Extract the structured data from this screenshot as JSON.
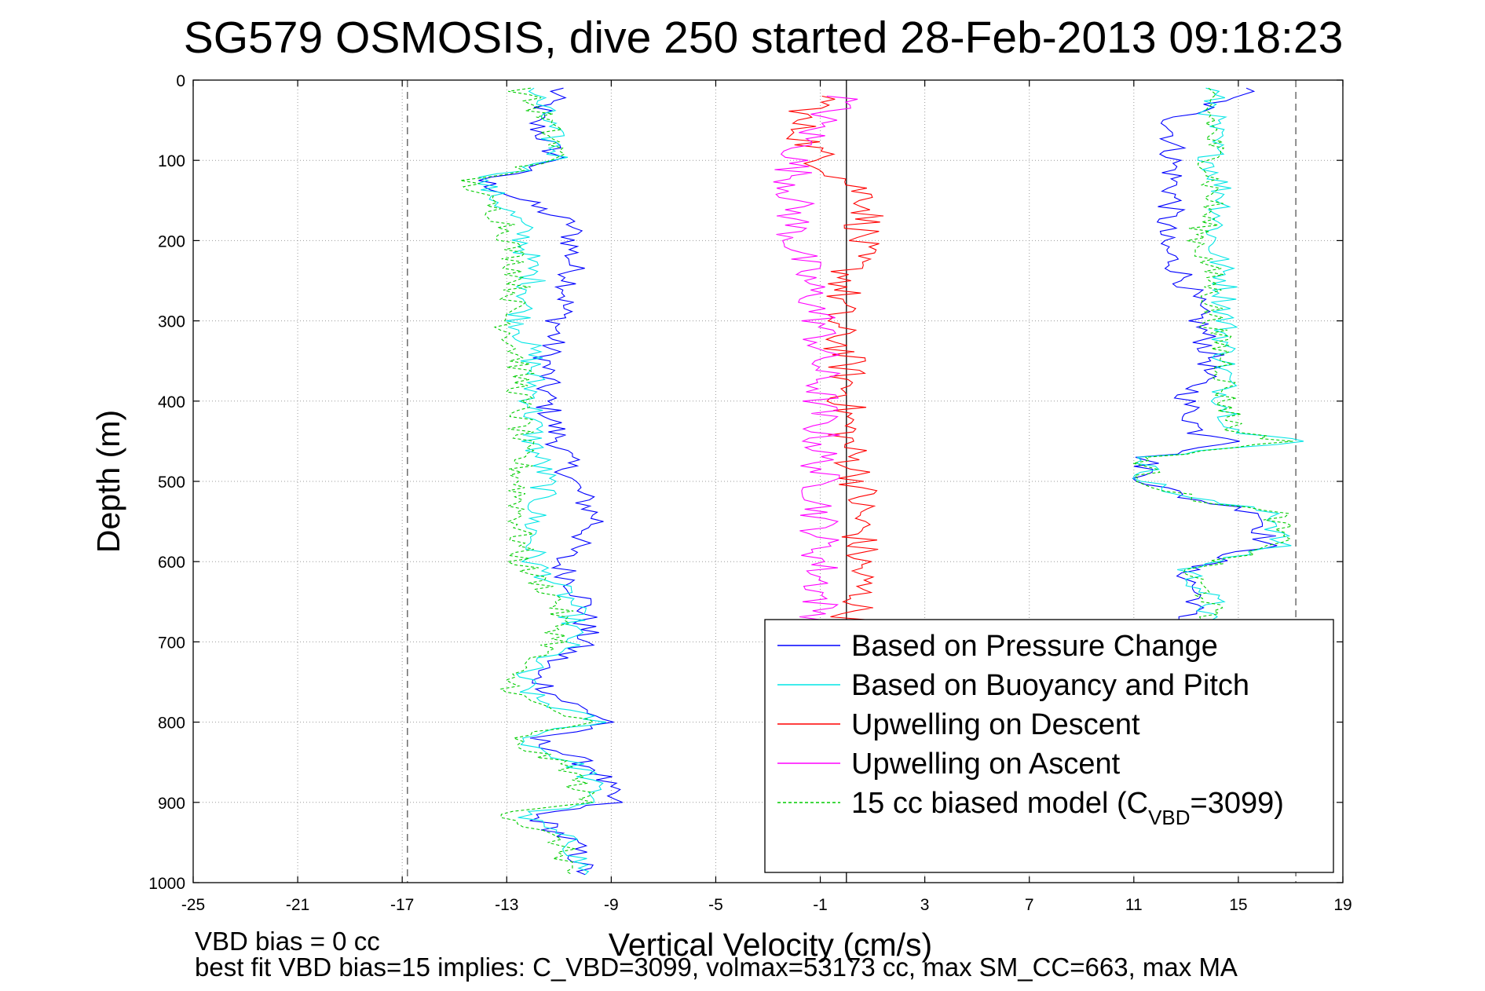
{
  "chart_data": {
    "type": "line",
    "title": "SG579 OSMOSIS, dive 250 started 28-Feb-2013 09:18:23",
    "xlabel": "Vertical Velocity (cm/s)",
    "ylabel": "Depth (m)",
    "xlim": [
      -25,
      19
    ],
    "ylim": [
      0,
      1000
    ],
    "y_reversed": true,
    "grid": true,
    "x_ticks": [
      "-25",
      "-21",
      "-17",
      "-13",
      "-9",
      "-5",
      "-1",
      "3",
      "7",
      "11",
      "15",
      "19"
    ],
    "y_ticks": [
      "0",
      "100",
      "200",
      "300",
      "400",
      "500",
      "600",
      "700",
      "800",
      "900",
      "1000"
    ],
    "legend_placement": "bottom-right",
    "reference_lines": [
      {
        "x": -16.8,
        "style": "dashed",
        "color": "#555555"
      },
      {
        "x": 17.2,
        "style": "dashed",
        "color": "#555555"
      },
      {
        "x": 0,
        "style": "solid",
        "color": "#000000"
      }
    ],
    "series": [
      {
        "name": "Based on Pressure Change",
        "color": "#0000ff",
        "style": "solid",
        "descent": [
          [
            -11,
            10
          ],
          [
            -12,
            50
          ],
          [
            -11,
            100
          ],
          [
            -14,
            125
          ],
          [
            -10.5,
            180
          ],
          [
            -10.5,
            250
          ],
          [
            -11,
            300
          ],
          [
            -11.5,
            350
          ],
          [
            -11.5,
            400
          ],
          [
            -11,
            450
          ],
          [
            -10.5,
            500
          ],
          [
            -9.5,
            550
          ],
          [
            -11,
            600
          ],
          [
            -10,
            650
          ],
          [
            -10,
            700
          ],
          [
            -12,
            740
          ],
          [
            -11,
            770
          ],
          [
            -9,
            800
          ],
          [
            -12,
            820
          ],
          [
            -9.5,
            860
          ],
          [
            -9,
            900
          ],
          [
            -12,
            915
          ],
          [
            -10.5,
            950
          ],
          [
            -10,
            990
          ]
        ],
        "ascent": [
          [
            15.5,
            10
          ],
          [
            12.5,
            50
          ],
          [
            12.5,
            100
          ],
          [
            12.5,
            150
          ],
          [
            12,
            200
          ],
          [
            13,
            250
          ],
          [
            13.5,
            300
          ],
          [
            14,
            350
          ],
          [
            13,
            400
          ],
          [
            13.5,
            440
          ],
          [
            15.5,
            450
          ],
          [
            11.5,
            470
          ],
          [
            11.5,
            500
          ],
          [
            13,
            520
          ],
          [
            16,
            540
          ],
          [
            16,
            580
          ],
          [
            13,
            610
          ],
          [
            13.5,
            650
          ],
          [
            12.5,
            680
          ]
        ]
      },
      {
        "name": "Based on Buoyancy and Pitch",
        "color": "#00e5e5",
        "style": "solid",
        "descent": [
          [
            -12,
            10
          ],
          [
            -11.5,
            50
          ],
          [
            -11,
            100
          ],
          [
            -14,
            125
          ],
          [
            -12.5,
            180
          ],
          [
            -12,
            250
          ],
          [
            -12.5,
            300
          ],
          [
            -12,
            350
          ],
          [
            -12,
            400
          ],
          [
            -12,
            450
          ],
          [
            -11.5,
            500
          ],
          [
            -12,
            550
          ],
          [
            -12,
            600
          ],
          [
            -10.5,
            650
          ],
          [
            -10.5,
            700
          ],
          [
            -12.5,
            740
          ],
          [
            -12,
            770
          ],
          [
            -9.5,
            800
          ],
          [
            -12.5,
            820
          ],
          [
            -10,
            860
          ],
          [
            -9.5,
            900
          ],
          [
            -12.5,
            915
          ],
          [
            -10.5,
            950
          ],
          [
            -10,
            990
          ]
        ],
        "ascent": [
          [
            14,
            10
          ],
          [
            14,
            50
          ],
          [
            14,
            100
          ],
          [
            14.5,
            150
          ],
          [
            14,
            200
          ],
          [
            14.5,
            250
          ],
          [
            14.5,
            300
          ],
          [
            14.5,
            350
          ],
          [
            14.5,
            400
          ],
          [
            15,
            440
          ],
          [
            17.5,
            450
          ],
          [
            11.5,
            470
          ],
          [
            11.5,
            500
          ],
          [
            13,
            520
          ],
          [
            16.5,
            540
          ],
          [
            16.5,
            580
          ],
          [
            13,
            610
          ],
          [
            14,
            650
          ],
          [
            13.5,
            680
          ]
        ]
      },
      {
        "name": "Upwelling on Descent",
        "color": "#ff0000",
        "style": "solid",
        "profile": [
          [
            -0.5,
            20
          ],
          [
            -2,
            50
          ],
          [
            -1,
            100
          ],
          [
            1,
            150
          ],
          [
            0.5,
            200
          ],
          [
            0,
            250
          ],
          [
            -0.5,
            300
          ],
          [
            0,
            350
          ],
          [
            0,
            400
          ],
          [
            0,
            450
          ],
          [
            0.5,
            500
          ],
          [
            0.5,
            550
          ],
          [
            0.5,
            600
          ],
          [
            0.5,
            650
          ],
          [
            0,
            680
          ]
        ]
      },
      {
        "name": "Upwelling on Ascent",
        "color": "#ff00ff",
        "style": "solid",
        "profile": [
          [
            0,
            20
          ],
          [
            -1,
            50
          ],
          [
            -2,
            100
          ],
          [
            -2,
            150
          ],
          [
            -2,
            200
          ],
          [
            -1.5,
            250
          ],
          [
            -1,
            300
          ],
          [
            -1,
            350
          ],
          [
            -1,
            400
          ],
          [
            -1,
            450
          ],
          [
            -1,
            500
          ],
          [
            -1,
            550
          ],
          [
            -1,
            600
          ],
          [
            -1,
            650
          ],
          [
            -1,
            680
          ]
        ]
      },
      {
        "name": "15 cc biased model (C",
        "name_sub": "VBD",
        "name_suffix": "=3099)",
        "color": "#00cc00",
        "style": "dashed",
        "descent": [
          [
            -12.5,
            10
          ],
          [
            -11.5,
            50
          ],
          [
            -11,
            100
          ],
          [
            -14.5,
            125
          ],
          [
            -13,
            180
          ],
          [
            -12.5,
            250
          ],
          [
            -13,
            300
          ],
          [
            -12.5,
            350
          ],
          [
            -12.5,
            400
          ],
          [
            -12.5,
            450
          ],
          [
            -12.5,
            500
          ],
          [
            -12.5,
            550
          ],
          [
            -12.5,
            600
          ],
          [
            -11,
            650
          ],
          [
            -11,
            700
          ],
          [
            -13,
            740
          ],
          [
            -12.5,
            770
          ],
          [
            -10,
            800
          ],
          [
            -13,
            820
          ],
          [
            -10.5,
            860
          ],
          [
            -10,
            900
          ],
          [
            -13,
            915
          ],
          [
            -11,
            950
          ],
          [
            -10.5,
            990
          ]
        ],
        "ascent": [
          [
            13.5,
            10
          ],
          [
            14,
            50
          ],
          [
            14,
            100
          ],
          [
            14,
            150
          ],
          [
            13.5,
            200
          ],
          [
            14,
            250
          ],
          [
            14,
            300
          ],
          [
            14.5,
            350
          ],
          [
            14.5,
            400
          ],
          [
            15,
            440
          ],
          [
            17,
            450
          ],
          [
            11.5,
            470
          ],
          [
            11.5,
            500
          ],
          [
            13,
            520
          ],
          [
            16.5,
            540
          ],
          [
            16.5,
            580
          ],
          [
            13,
            610
          ],
          [
            14,
            650
          ],
          [
            13.5,
            680
          ]
        ]
      }
    ],
    "footer": {
      "line1": "VBD bias = 0 cc",
      "line2": "best fit VBD bias=15 implies: C_VBD=3099, volmax=53173 cc, max SM_CC=663, max MA"
    }
  }
}
